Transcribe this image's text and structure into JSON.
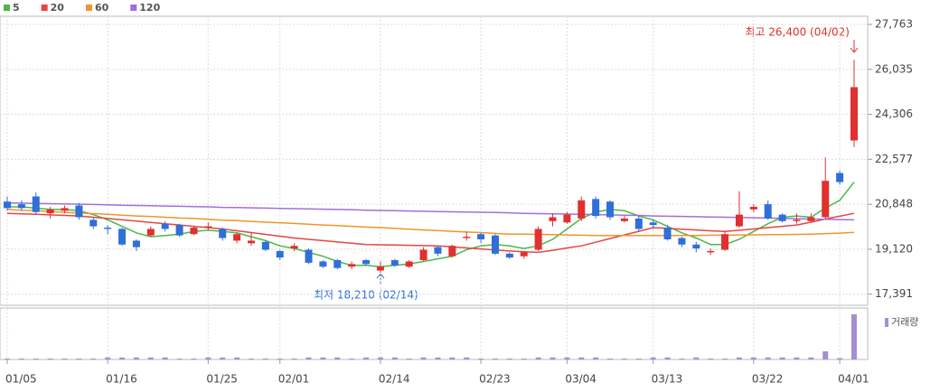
{
  "chart_data": {
    "type": "candlestick",
    "categories": [
      "01/05",
      null,
      null,
      null,
      null,
      null,
      null,
      "01/16",
      null,
      null,
      null,
      null,
      null,
      null,
      "01/25",
      null,
      null,
      null,
      null,
      "02/01",
      null,
      null,
      null,
      null,
      null,
      null,
      "02/14",
      null,
      null,
      null,
      null,
      null,
      null,
      "02/23",
      null,
      null,
      null,
      null,
      null,
      "03/04",
      null,
      null,
      null,
      null,
      null,
      "03/13",
      null,
      null,
      null,
      null,
      null,
      null,
      "03/22",
      null,
      null,
      null,
      null,
      null,
      "04/01",
      null
    ],
    "open": [
      20950,
      20850,
      21150,
      20500,
      20600,
      20800,
      20250,
      19950,
      19900,
      19450,
      19650,
      20100,
      20050,
      19700,
      19950,
      19900,
      19450,
      19350,
      19400,
      19050,
      19150,
      19100,
      18650,
      18700,
      18450,
      18700,
      18300,
      18700,
      18450,
      18700,
      19200,
      18850,
      19550,
      19700,
      19650,
      18950,
      18850,
      19100,
      20200,
      20150,
      20300,
      21050,
      20950,
      20200,
      20300,
      20150,
      19950,
      19550,
      19300,
      19000,
      19100,
      20000,
      20650,
      20850,
      20450,
      20200,
      20200,
      20350,
      22050,
      23300
    ],
    "high": [
      21150,
      21000,
      21300,
      20750,
      20800,
      20900,
      20350,
      20050,
      19950,
      19500,
      20000,
      20200,
      20100,
      20000,
      20150,
      19950,
      19750,
      19750,
      19450,
      19100,
      19350,
      19150,
      18700,
      18750,
      18650,
      18750,
      18650,
      18750,
      18700,
      19200,
      19250,
      19300,
      19800,
      19750,
      19700,
      19000,
      19050,
      20000,
      20500,
      20550,
      21150,
      21150,
      21000,
      20400,
      20400,
      20250,
      20050,
      19600,
      19400,
      19150,
      19800,
      21350,
      20850,
      21000,
      20500,
      20500,
      20500,
      22650,
      22150,
      26400
    ],
    "low": [
      20600,
      20600,
      20450,
      20300,
      20500,
      20250,
      19900,
      19700,
      19250,
      19050,
      19600,
      19800,
      19600,
      19650,
      19850,
      19450,
      19350,
      19250,
      19050,
      18700,
      19050,
      18550,
      18400,
      18350,
      18350,
      18500,
      18210,
      18450,
      18400,
      18650,
      18850,
      18800,
      19450,
      19350,
      18900,
      18750,
      18750,
      19050,
      20000,
      20100,
      20200,
      20300,
      20250,
      20150,
      19800,
      19900,
      19450,
      19200,
      19000,
      18900,
      19050,
      19950,
      20550,
      20250,
      20150,
      20100,
      20150,
      20300,
      21600,
      23050
    ],
    "close": [
      20700,
      20700,
      20550,
      20650,
      20700,
      20350,
      20000,
      19900,
      19300,
      19200,
      19900,
      19900,
      19650,
      19950,
      20000,
      19550,
      19700,
      19450,
      19100,
      18800,
      19250,
      18600,
      18450,
      18400,
      18550,
      18550,
      18450,
      18500,
      18650,
      19100,
      18950,
      19250,
      19600,
      19500,
      18950,
      18800,
      19000,
      19900,
      20350,
      20450,
      21000,
      20400,
      20350,
      20300,
      19900,
      20050,
      19500,
      19300,
      19150,
      19050,
      19700,
      20450,
      20750,
      20300,
      20200,
      20250,
      20350,
      21750,
      21700,
      25350
    ],
    "up_color": "#e0302f",
    "down_color": "#2f6fd8",
    "series": [
      {
        "name": "5",
        "color": "#4cb84a",
        "values": [
          20750,
          20750,
          20700,
          20650,
          20650,
          20600,
          20450,
          20250,
          20000,
          19750,
          19600,
          19650,
          19700,
          19800,
          19850,
          19800,
          19750,
          19600,
          19450,
          19250,
          19150,
          19000,
          18850,
          18650,
          18500,
          18500,
          18450,
          18500,
          18550,
          18650,
          18750,
          18850,
          19100,
          19250,
          19300,
          19250,
          19150,
          19250,
          19500,
          19900,
          20300,
          20550,
          20650,
          20600,
          20400,
          20250,
          20000,
          19750,
          19550,
          19300,
          19300,
          19500,
          19800,
          20100,
          20350,
          20400,
          20350,
          20700,
          21000,
          21700
        ]
      },
      {
        "name": "20",
        "color": "#e64545",
        "values": [
          20500,
          20480,
          20460,
          20440,
          20420,
          20400,
          20350,
          20300,
          20250,
          20200,
          20150,
          20100,
          20050,
          20000,
          19950,
          19900,
          19830,
          19760,
          19690,
          19620,
          19550,
          19500,
          19450,
          19400,
          19350,
          19300,
          19290,
          19280,
          19270,
          19260,
          19250,
          19210,
          19170,
          19130,
          19090,
          19050,
          19025,
          19000,
          19080,
          19170,
          19250,
          19390,
          19530,
          19670,
          19810,
          19950,
          19920,
          19890,
          19860,
          19830,
          19800,
          19850,
          19900,
          19950,
          20000,
          20050,
          20160,
          20280,
          20390,
          20500
        ]
      },
      {
        "name": "60",
        "color": "#f0952b",
        "values": [
          20650,
          20620,
          20600,
          20570,
          20540,
          20510,
          20490,
          20460,
          20430,
          20400,
          20380,
          20350,
          20320,
          20300,
          20270,
          20240,
          20220,
          20190,
          20160,
          20140,
          20110,
          20080,
          20050,
          20030,
          20000,
          19970,
          19950,
          19920,
          19890,
          19860,
          19840,
          19810,
          19780,
          19760,
          19730,
          19700,
          19700,
          19690,
          19680,
          19670,
          19660,
          19650,
          19650,
          19650,
          19650,
          19650,
          19650,
          19650,
          19650,
          19660,
          19660,
          19670,
          19670,
          19680,
          19680,
          19690,
          19700,
          19720,
          19740,
          19770
        ]
      },
      {
        "name": "120",
        "color": "#a070d8",
        "values": [
          20900,
          20890,
          20880,
          20870,
          20860,
          20850,
          20840,
          20830,
          20810,
          20800,
          20790,
          20780,
          20770,
          20760,
          20750,
          20730,
          20720,
          20710,
          20700,
          20690,
          20680,
          20670,
          20660,
          20650,
          20640,
          20620,
          20610,
          20600,
          20590,
          20580,
          20570,
          20560,
          20550,
          20540,
          20530,
          20520,
          20500,
          20490,
          20480,
          20470,
          20460,
          20450,
          20440,
          20430,
          20420,
          20400,
          20390,
          20380,
          20370,
          20360,
          20350,
          20340,
          20330,
          20320,
          20310,
          20290,
          20280,
          20270,
          20260,
          20250
        ]
      }
    ],
    "volume": {
      "name": "거래량",
      "color": "#a58fd0",
      "values": [
        20,
        20,
        20,
        20,
        20,
        20,
        20,
        45,
        45,
        45,
        45,
        45,
        20,
        20,
        45,
        45,
        45,
        20,
        20,
        20,
        20,
        45,
        45,
        45,
        20,
        45,
        45,
        45,
        20,
        45,
        45,
        45,
        45,
        20,
        20,
        20,
        20,
        45,
        45,
        45,
        45,
        45,
        20,
        20,
        20,
        45,
        45,
        20,
        45,
        20,
        20,
        45,
        45,
        45,
        45,
        45,
        45,
        180,
        30,
        1000
      ]
    },
    "ylim": [
      16965,
      28075
    ],
    "yticks": [
      {
        "value": 17391,
        "label": "17,391"
      },
      {
        "value": 19120,
        "label": "19,120"
      },
      {
        "value": 20848,
        "label": "20,848"
      },
      {
        "value": 22577,
        "label": "22,577"
      },
      {
        "value": 24306,
        "label": "24,306"
      },
      {
        "value": 26035,
        "label": "26,035"
      },
      {
        "value": 27763,
        "label": "27,763"
      }
    ],
    "annotations": [
      "최고 26,400 (04/02)",
      "최저 18,210 (02/14)"
    ],
    "grid": true
  }
}
